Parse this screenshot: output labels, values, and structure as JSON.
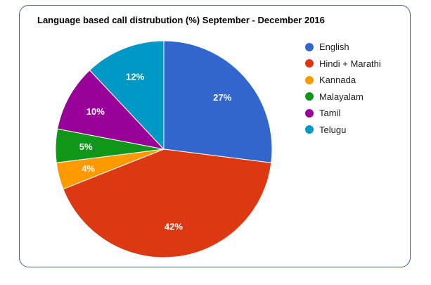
{
  "chart_data": {
    "type": "pie",
    "title": "Language based call distrubution (%) September - December 2016",
    "categories": [
      "English",
      "Hindi + Marathi",
      "Kannada",
      "Malayalam",
      "Tamil",
      "Telugu"
    ],
    "values": [
      27,
      42,
      4,
      5,
      10,
      12
    ],
    "labels": [
      "27%",
      "42%",
      "4%",
      "5%",
      "10%",
      "12%"
    ],
    "colors": [
      "#3366cc",
      "#dc3912",
      "#ff9900",
      "#109618",
      "#990099",
      "#0099c6"
    ],
    "start_angle_deg": 0,
    "direction": "clockwise",
    "legend": "right"
  }
}
